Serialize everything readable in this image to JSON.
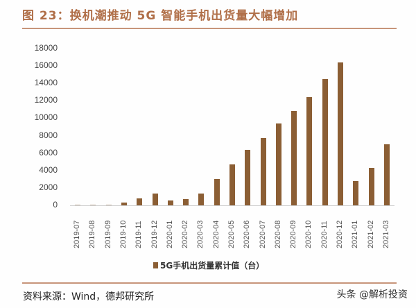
{
  "header": {
    "title": "图 23：换机潮推动 5G 智能手机出货量大幅增加"
  },
  "footer": {
    "source": "资料来源：Wind，德邦研究所",
    "watermark": "头条 @解析投资"
  },
  "colors": {
    "bar": "#8b5e34",
    "title": "#b06f48",
    "rule": "#c7957a"
  },
  "chart_data": {
    "type": "bar",
    "title": "换机潮推动 5G 智能手机出货量大幅增加",
    "xlabel": "",
    "ylabel": "",
    "ylim": [
      0,
      18000
    ],
    "yticks": [
      0,
      2000,
      4000,
      6000,
      8000,
      10000,
      12000,
      14000,
      16000,
      18000
    ],
    "grid": false,
    "legend_position": "bottom",
    "categories": [
      "2019-07",
      "2019-08",
      "2019-09",
      "2019-10",
      "2019-11",
      "2019-12",
      "2020-01",
      "2020-02",
      "2020-03",
      "2020-04",
      "2020-05",
      "2020-06",
      "2020-07",
      "2020-08",
      "2020-09",
      "2020-10",
      "2020-11",
      "2020-12",
      "2021-01",
      "2021-02",
      "2021-03"
    ],
    "series": [
      {
        "name": "5G手机出货量累计值（台）",
        "values": [
          80,
          100,
          90,
          320,
          800,
          1350,
          560,
          720,
          1350,
          3030,
          4700,
          6370,
          7730,
          9400,
          10840,
          12430,
          14500,
          16410,
          2790,
          4300,
          7010
        ]
      }
    ]
  }
}
